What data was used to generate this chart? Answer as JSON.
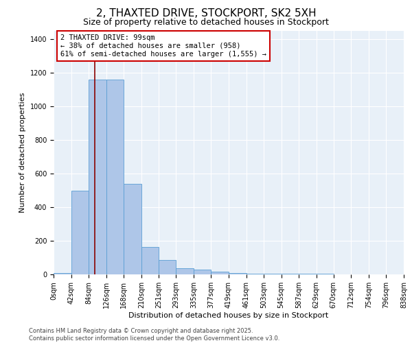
{
  "title": "2, THAXTED DRIVE, STOCKPORT, SK2 5XH",
  "subtitle": "Size of property relative to detached houses in Stockport",
  "xlabel": "Distribution of detached houses by size in Stockport",
  "ylabel": "Number of detached properties",
  "bin_edges": [
    0,
    42,
    84,
    126,
    168,
    210,
    251,
    293,
    335,
    377,
    419,
    461,
    503,
    545,
    587,
    629,
    670,
    712,
    754,
    796,
    838
  ],
  "bar_heights": [
    10,
    500,
    1160,
    1160,
    540,
    165,
    85,
    35,
    28,
    15,
    10,
    6,
    5,
    4,
    4,
    3,
    2,
    2,
    1,
    1
  ],
  "bar_color": "#aec6e8",
  "bar_edge_color": "#5a9fd4",
  "property_size": 99,
  "property_line_color": "#8b0000",
  "annotation_text": "2 THAXTED DRIVE: 99sqm\n← 38% of detached houses are smaller (958)\n61% of semi-detached houses are larger (1,555) →",
  "annotation_box_color": "#ffffff",
  "annotation_box_edge_color": "#cc0000",
  "ylim": [
    0,
    1450
  ],
  "yticks": [
    0,
    200,
    400,
    600,
    800,
    1000,
    1200,
    1400
  ],
  "bg_color": "#e8f0f8",
  "fig_bg_color": "#ffffff",
  "footer_text": "Contains HM Land Registry data © Crown copyright and database right 2025.\nContains public sector information licensed under the Open Government Licence v3.0.",
  "title_fontsize": 11,
  "subtitle_fontsize": 9,
  "axis_label_fontsize": 8,
  "tick_fontsize": 7,
  "annotation_fontsize": 7.5,
  "footer_fontsize": 6
}
